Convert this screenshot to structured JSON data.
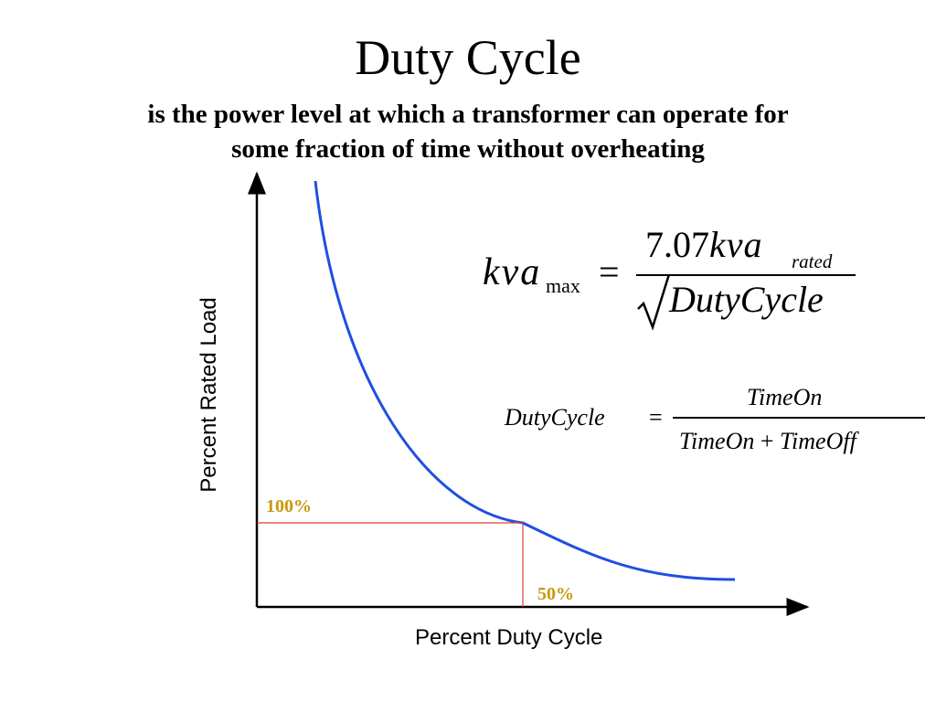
{
  "slide": {
    "title": "Duty Cycle",
    "subtitle_line1": "is the power level at which a transformer can operate for",
    "subtitle_line2": "some fraction of time without overheating"
  },
  "graph": {
    "y_axis_label": "Percent Rated Load",
    "x_axis_label": "Percent Duty Cycle",
    "marker_y_label": "100%",
    "marker_x_label": "50%",
    "colors": {
      "curve": "#1f4fe0",
      "guide_lines": "#e03a3a",
      "marker_text": "#c8980a",
      "axes": "#000000"
    }
  },
  "formula_max": {
    "lhs_main": "kva",
    "lhs_sub": "max",
    "equals": "=",
    "num_coef": "7.07",
    "num_main": "kva",
    "num_sub": "rated",
    "denominator": "DutyCycle"
  },
  "formula_duty": {
    "lhs": "DutyCycle",
    "equals": "=",
    "numerator": "TimeOn",
    "den_a": "TimeOn",
    "den_plus": "+",
    "den_b": "TimeOff"
  }
}
